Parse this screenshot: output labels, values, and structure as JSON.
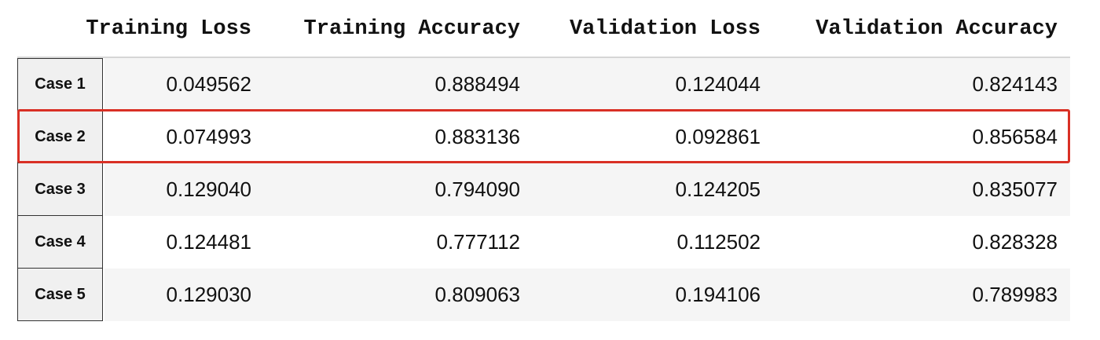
{
  "table": {
    "columns": [
      "Training Loss",
      "Training Accuracy",
      "Validation Loss",
      "Validation Accuracy"
    ],
    "rows": [
      {
        "label": "Case 1",
        "values": [
          "0.049562",
          "0.888494",
          "0.124044",
          "0.824143"
        ]
      },
      {
        "label": "Case 2",
        "values": [
          "0.074993",
          "0.883136",
          "0.092861",
          "0.856584"
        ]
      },
      {
        "label": "Case 3",
        "values": [
          "0.129040",
          "0.794090",
          "0.124205",
          "0.835077"
        ]
      },
      {
        "label": "Case 4",
        "values": [
          "0.124481",
          "0.777112",
          "0.112502",
          "0.828328"
        ]
      },
      {
        "label": "Case 5",
        "values": [
          "0.129030",
          "0.809063",
          "0.194106",
          "0.789983"
        ]
      }
    ],
    "highlight_row_index": 1,
    "highlight_color": "#d93025",
    "stripe_color": "#f5f5f5"
  }
}
